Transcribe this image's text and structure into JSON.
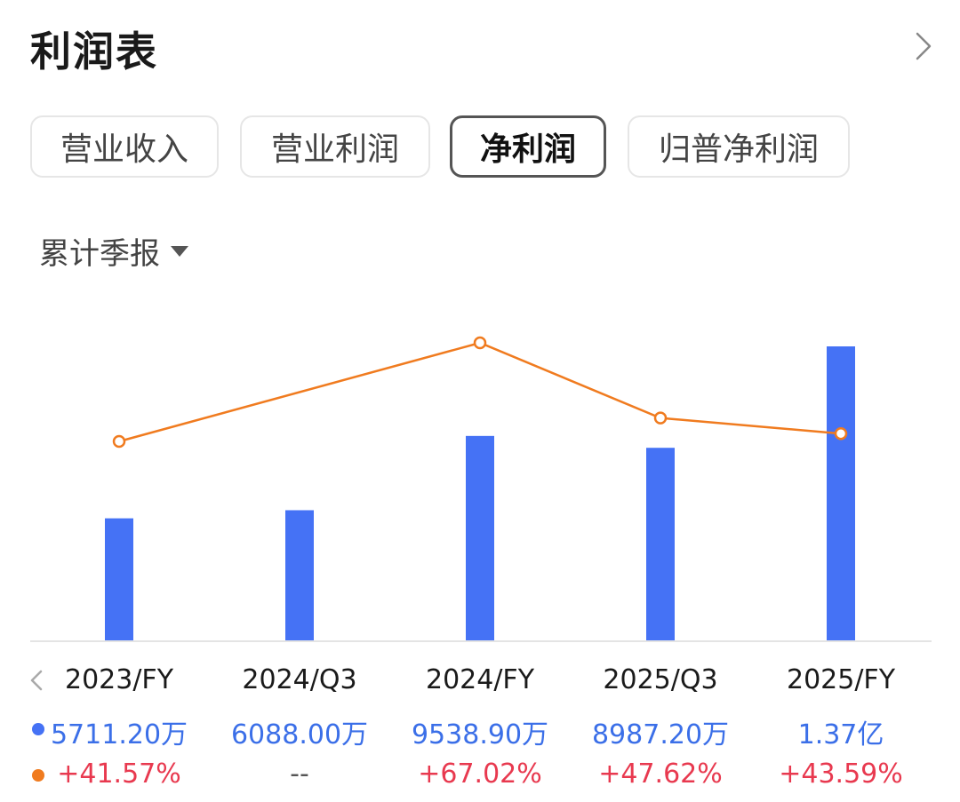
{
  "header": {
    "title": "利润表"
  },
  "tabs": [
    {
      "label": "营业收入",
      "active": false
    },
    {
      "label": "营业利润",
      "active": false
    },
    {
      "label": "净利润",
      "active": true
    },
    {
      "label": "归普净利润",
      "active": false
    }
  ],
  "period_selector": {
    "label": "累计季报"
  },
  "chart_data": {
    "type": "bar",
    "categories": [
      "2023/FY",
      "2024/Q3",
      "2024/FY",
      "2025/Q3",
      "2025/FY"
    ],
    "series": [
      {
        "type": "bar",
        "unit": "万",
        "values": [
          5711.2,
          6088.0,
          9538.9,
          8987.2,
          13700
        ],
        "labels": [
          "5711.20万",
          "6088.00万",
          "9538.90万",
          "8987.20万",
          "1.37亿"
        ],
        "color": "#4572f5"
      },
      {
        "type": "line",
        "unit": "%",
        "values": [
          41.57,
          null,
          67.02,
          47.62,
          43.59
        ],
        "labels": [
          "+41.57%",
          "--",
          "+67.02%",
          "+47.62%",
          "+43.59%"
        ],
        "color": "#f07b1f"
      }
    ]
  },
  "colors": {
    "bar": "#4572f5",
    "line": "#f07b1f",
    "positive": "#e8394f"
  }
}
